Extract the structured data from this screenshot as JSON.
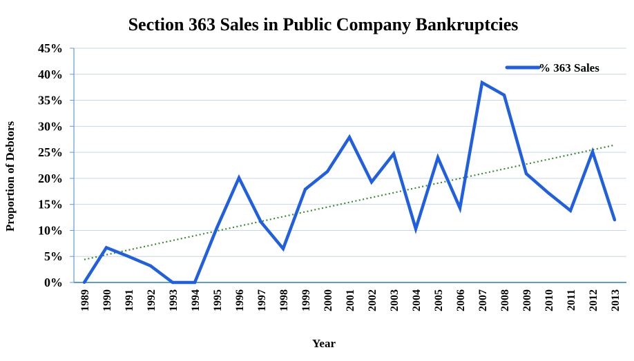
{
  "chart_data": {
    "type": "line",
    "title": "Section 363 Sales in Public Company Bankruptcies",
    "xlabel": "Year",
    "ylabel": "Proportion of Debtors",
    "categories": [
      "1989",
      "1990",
      "1991",
      "1992",
      "1993",
      "1994",
      "1995",
      "1996",
      "1997",
      "1998",
      "1999",
      "2000",
      "2001",
      "2002",
      "2003",
      "2004",
      "2005",
      "2006",
      "2007",
      "2008",
      "2009",
      "2010",
      "2011",
      "2012",
      "2013"
    ],
    "series": [
      {
        "name": "% 363 Sales",
        "color": "#1f5fe0",
        "values": [
          0,
          6.7,
          5.0,
          3.2,
          0,
          0,
          10.5,
          20.1,
          11.6,
          6.5,
          17.9,
          21.3,
          27.9,
          19.3,
          24.7,
          10.3,
          24.0,
          14.3,
          38.4,
          36.0,
          20.9,
          17.2,
          13.8,
          25.1,
          12.0
        ]
      }
    ],
    "trendline": {
      "style": "dotted",
      "color": "#3a8a2e",
      "start": 4.4,
      "end": 26.4
    },
    "yticks": [
      "0%",
      "5%",
      "10%",
      "15%",
      "20%",
      "25%",
      "30%",
      "35%",
      "40%",
      "45%"
    ],
    "ylim": [
      0,
      45
    ],
    "ystep": 5,
    "grid": true,
    "grid_color": "#c5d6ec",
    "axis_color": "#5b9bd5",
    "legend_position": "top-right"
  }
}
